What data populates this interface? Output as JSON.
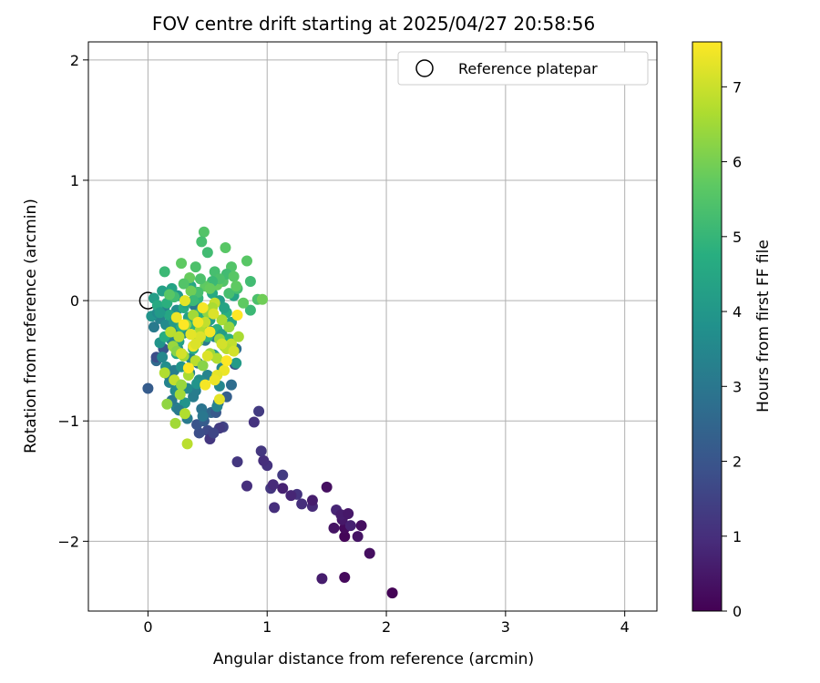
{
  "chart_data": {
    "type": "scatter",
    "title": "FOV centre drift starting at 2025/04/27 20:58:56",
    "xlabel": "Angular distance from reference (arcmin)",
    "ylabel": "Rotation from reference (arcmin)",
    "xlim": [
      -0.5,
      4.27
    ],
    "ylim": [
      -2.58,
      2.15
    ],
    "xticks": [
      0,
      1,
      2,
      3,
      4
    ],
    "yticks": [
      -2,
      -1,
      0,
      1,
      2
    ],
    "x_tick_labels": [
      "0",
      "1",
      "2",
      "3",
      "4"
    ],
    "y_tick_labels": [
      "−2",
      "−1",
      "0",
      "1",
      "2"
    ],
    "grid": true,
    "legend": {
      "entries": [
        "Reference platepar"
      ],
      "location": "upper right"
    },
    "colorbar": {
      "label": "Hours from first FF file",
      "range": [
        0,
        7.6
      ],
      "ticks": [
        0,
        1,
        2,
        3,
        4,
        5,
        6,
        7
      ],
      "tick_labels": [
        "0",
        "1",
        "2",
        "3",
        "4",
        "5",
        "6",
        "7"
      ],
      "colormap": "viridis"
    },
    "reference_point": {
      "name": "Reference platepar",
      "x": 0,
      "y": 0
    },
    "series": [
      {
        "x": [
          2.05,
          1.46,
          1.65,
          1.86,
          1.65,
          1.65,
          1.56,
          1.63,
          1.79,
          1.7,
          1.58,
          1.62,
          1.68,
          1.76,
          1.38,
          1.38,
          1.29,
          1.25,
          1.2,
          1.06,
          1.13,
          1.03,
          1.05,
          1.13,
          1.0,
          0.97,
          0.95,
          0.83,
          0.75,
          0.93,
          0.89,
          1.5
        ],
        "y": [
          -2.43,
          -2.31,
          -2.3,
          -2.1,
          -1.96,
          -1.89,
          -1.89,
          -1.82,
          -1.87,
          -1.87,
          -1.74,
          -1.78,
          -1.77,
          -1.96,
          -1.71,
          -1.66,
          -1.69,
          -1.61,
          -1.62,
          -1.72,
          -1.56,
          -1.56,
          -1.53,
          -1.45,
          -1.37,
          -1.33,
          -1.25,
          -1.54,
          -1.34,
          -0.92,
          -1.01,
          -1.55
        ],
        "c": [
          0.05,
          0.6,
          0.2,
          0.3,
          0.1,
          0.2,
          0.4,
          0.5,
          0.3,
          0.7,
          0.8,
          0.6,
          0.5,
          0.4,
          0.9,
          0.6,
          1.0,
          1.1,
          0.8,
          1.0,
          0.7,
          1.2,
          0.9,
          1.3,
          1.1,
          1.0,
          1.2,
          1.0,
          1.2,
          1.3,
          1.1,
          0.3
        ]
      },
      {
        "x": [
          0.63,
          0.6,
          0.5,
          0.52,
          0.55,
          0.43,
          0.41,
          0.47,
          0.47,
          0.53,
          0.57,
          0.59,
          0.66,
          0.7,
          0.73,
          0.74,
          0.13,
          0.07,
          0.07,
          0.0
        ],
        "y": [
          -1.05,
          -1.06,
          -1.08,
          -1.15,
          -1.1,
          -1.1,
          -1.03,
          -1.0,
          -0.95,
          -0.93,
          -0.93,
          -0.85,
          -0.8,
          -0.7,
          -0.53,
          -0.4,
          -0.4,
          -0.5,
          -0.47,
          -0.73
        ],
        "c": [
          1.5,
          1.3,
          1.7,
          1.2,
          1.6,
          1.8,
          2.0,
          2.2,
          2.4,
          2.5,
          2.1,
          2.6,
          2.3,
          2.7,
          1.9,
          2.8,
          2.0,
          2.6,
          1.8,
          2.2
        ]
      },
      {
        "x": [
          0.33,
          0.24,
          0.2,
          0.45,
          0.23,
          0.18,
          0.27,
          0.38,
          0.35,
          0.15,
          0.1,
          0.05,
          0.1,
          0.16,
          0.28,
          0.42,
          0.5,
          0.43,
          0.22,
          0.12,
          0.03,
          0.38,
          0.3,
          0.48,
          0.55,
          0.6,
          0.4,
          0.31,
          0.58,
          0.46,
          0.25,
          0.2,
          0.15,
          0.34,
          0.44,
          0.52,
          0.36,
          0.28,
          0.18,
          0.08,
          0.14,
          0.24,
          0.39,
          0.47,
          0.56,
          0.62,
          0.26,
          0.33,
          0.41,
          0.21
        ],
        "y": [
          -0.98,
          -0.89,
          -0.83,
          -0.9,
          -0.75,
          -0.68,
          -0.7,
          -0.8,
          -0.6,
          -0.55,
          -0.35,
          -0.22,
          -0.15,
          -0.3,
          -0.44,
          -0.52,
          -0.62,
          -0.66,
          -0.58,
          -0.47,
          -0.13,
          -0.38,
          -0.27,
          -0.33,
          -0.45,
          -0.71,
          -0.75,
          -0.85,
          -0.88,
          -0.96,
          -0.4,
          -0.33,
          -0.2,
          -0.2,
          -0.15,
          -0.25,
          -0.48,
          -0.55,
          -0.63,
          -0.1,
          -0.05,
          -0.08,
          -0.04,
          -0.12,
          -0.3,
          -0.56,
          -0.91,
          -0.73,
          -0.69,
          -0.24
        ],
        "c": [
          3.1,
          3.3,
          3.0,
          2.9,
          3.6,
          3.4,
          3.8,
          3.2,
          3.5,
          3.7,
          3.9,
          3.1,
          3.3,
          3.6,
          3.8,
          3.0,
          3.4,
          3.7,
          3.2,
          3.5,
          3.9,
          3.3,
          3.6,
          3.1,
          3.8,
          3.5,
          3.2,
          3.9,
          3.4,
          3.0,
          3.7,
          3.3,
          3.6,
          3.8,
          3.1,
          3.4,
          3.5,
          3.9,
          3.2,
          3.6,
          3.3,
          3.7,
          3.0,
          3.8,
          3.4,
          3.5,
          3.1,
          3.6,
          3.9,
          3.3
        ]
      },
      {
        "x": [
          0.05,
          0.08,
          0.12,
          0.16,
          0.2,
          0.25,
          0.3,
          0.36,
          0.42,
          0.48,
          0.54,
          0.6,
          0.66,
          0.72,
          0.18,
          0.22,
          0.28,
          0.34,
          0.4,
          0.46,
          0.52,
          0.58,
          0.64,
          0.7,
          0.1,
          0.14,
          0.26,
          0.38,
          0.5,
          0.62,
          0.44,
          0.32,
          0.24,
          0.56,
          0.68,
          0.74
        ],
        "y": [
          0.02,
          -0.04,
          0.08,
          -0.02,
          0.1,
          0.04,
          -0.06,
          0.12,
          0.02,
          -0.08,
          0.06,
          0.0,
          -0.1,
          0.04,
          -0.12,
          -0.18,
          -0.22,
          -0.14,
          -0.2,
          -0.26,
          -0.16,
          -0.24,
          -0.06,
          -0.18,
          -0.1,
          -0.3,
          -0.34,
          -0.4,
          -0.3,
          -0.28,
          -0.1,
          -0.02,
          -0.44,
          -0.46,
          -0.32,
          -0.52
        ],
        "c": [
          4.2,
          4.6,
          4.3,
          4.8,
          4.4,
          4.1,
          4.7,
          4.5,
          4.9,
          4.3,
          4.6,
          4.2,
          4.8,
          4.4,
          4.5,
          4.1,
          4.7,
          4.3,
          4.9,
          4.6,
          4.2,
          4.8,
          4.4,
          4.5,
          4.1,
          4.7,
          4.3,
          4.6,
          4.9,
          4.2,
          4.8,
          4.4,
          4.5,
          4.3,
          4.7,
          4.1
        ]
      },
      {
        "x": [
          0.47,
          0.45,
          0.65,
          0.5,
          0.4,
          0.28,
          0.14,
          0.35,
          0.56,
          0.7,
          0.83,
          0.86,
          0.92,
          0.96,
          0.86,
          0.8,
          0.75,
          0.63,
          0.58,
          0.66,
          0.72,
          0.6,
          0.54,
          0.48,
          0.42,
          0.36,
          0.3,
          0.22,
          0.18,
          0.44,
          0.52,
          0.38,
          0.68,
          0.74
        ],
        "y": [
          0.57,
          0.49,
          0.44,
          0.4,
          0.28,
          0.31,
          0.24,
          0.19,
          0.24,
          0.28,
          0.33,
          0.16,
          0.01,
          0.01,
          -0.08,
          -0.02,
          0.1,
          0.16,
          0.13,
          0.22,
          0.2,
          0.18,
          0.16,
          0.12,
          0.07,
          0.08,
          0.14,
          0.03,
          0.05,
          0.18,
          0.1,
          0.0,
          0.06,
          0.12
        ],
        "c": [
          5.5,
          5.3,
          5.6,
          5.2,
          5.4,
          5.7,
          5.1,
          5.8,
          5.3,
          5.5,
          5.6,
          5.2,
          5.4,
          5.9,
          5.1,
          5.7,
          5.3,
          5.5,
          5.8,
          5.2,
          5.6,
          5.4,
          5.1,
          5.7,
          5.3,
          5.9,
          5.5,
          5.2,
          5.6,
          5.4,
          5.8,
          5.1,
          5.3,
          5.7
        ]
      },
      {
        "x": [
          0.33,
          0.23,
          0.16,
          0.14,
          0.22,
          0.28,
          0.34,
          0.4,
          0.46,
          0.52,
          0.58,
          0.64,
          0.7,
          0.76,
          0.21,
          0.26,
          0.32,
          0.38,
          0.44,
          0.5,
          0.56,
          0.62,
          0.68,
          0.19,
          0.24,
          0.3,
          0.36,
          0.42,
          0.48,
          0.54,
          0.6,
          0.66,
          0.27,
          0.31
        ],
        "y": [
          -1.19,
          -1.02,
          -0.86,
          -0.6,
          -0.66,
          -0.7,
          -0.62,
          -0.5,
          -0.54,
          -0.44,
          -0.48,
          -0.38,
          -0.36,
          -0.3,
          -0.38,
          -0.3,
          -0.2,
          -0.12,
          -0.24,
          -0.1,
          -0.02,
          -0.16,
          -0.22,
          -0.26,
          -0.42,
          -0.46,
          -0.28,
          -0.34,
          -0.18,
          -0.06,
          -0.32,
          -0.4,
          -0.78,
          -0.94
        ],
        "c": [
          6.8,
          6.5,
          6.3,
          6.7,
          6.9,
          6.4,
          6.6,
          6.8,
          6.2,
          6.5,
          6.7,
          6.3,
          6.9,
          6.6,
          6.4,
          6.8,
          6.2,
          6.5,
          6.7,
          6.3,
          6.9,
          6.6,
          6.4,
          6.8,
          6.2,
          6.5,
          6.7,
          6.3,
          6.9,
          6.6,
          6.4,
          6.8,
          6.5,
          6.7
        ]
      },
      {
        "x": [
          0.31,
          0.46,
          0.55,
          0.64,
          0.75,
          0.62,
          0.58,
          0.52,
          0.44,
          0.38,
          0.34,
          0.28,
          0.36,
          0.42,
          0.5,
          0.56,
          0.66,
          0.72,
          0.6,
          0.48,
          0.4,
          0.24,
          0.3
        ],
        "y": [
          0.0,
          -0.06,
          -0.11,
          -0.58,
          -0.12,
          -0.36,
          -0.62,
          -0.26,
          -0.3,
          -0.38,
          -0.56,
          -0.44,
          -0.28,
          -0.18,
          -0.46,
          -0.66,
          -0.5,
          -0.42,
          -0.82,
          -0.7,
          -0.36,
          -0.14,
          -0.2
        ],
        "c": [
          7.3,
          7.5,
          7.2,
          7.4,
          7.6,
          7.1,
          7.3,
          7.5,
          7.2,
          7.4,
          7.6,
          7.1,
          7.3,
          7.5,
          7.2,
          7.4,
          7.6,
          7.1,
          7.3,
          7.5,
          7.2,
          7.4,
          7.6
        ]
      }
    ]
  }
}
